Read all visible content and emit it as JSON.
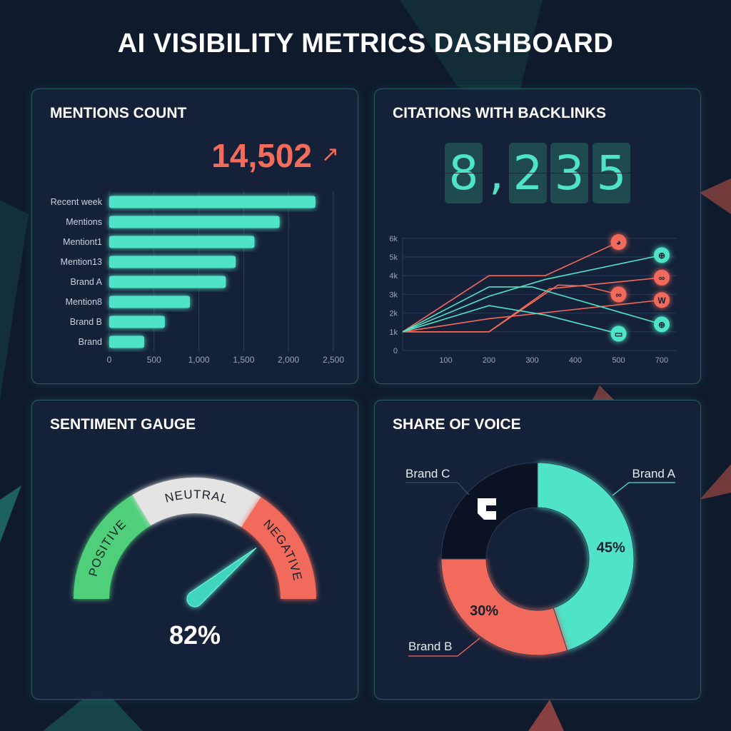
{
  "page": {
    "title": "AI VISIBILITY METRICS DASHBOARD"
  },
  "colors": {
    "teal": "#4fe3c8",
    "coral": "#f26b5b",
    "green": "#4fcf7a",
    "neutral": "#e4e4e4",
    "navy": "#0b1224"
  },
  "mentions": {
    "title": "MENTIONS COUNT",
    "total": "14,502",
    "trend_icon": "arrow-up-right-icon",
    "trend_glyph": "↗",
    "chart_data": {
      "type": "bar",
      "orientation": "horizontal",
      "categories": [
        "Recent week",
        "Mentions",
        "Mentiont1",
        "Mention13",
        "Brand A",
        "Mention8",
        "Brand B",
        "Brand"
      ],
      "values": [
        2300,
        1900,
        1620,
        1410,
        1300,
        900,
        620,
        390
      ],
      "xlim": [
        0,
        2500
      ],
      "xticks": [
        "0",
        "500",
        "1,000",
        "1,500",
        "2,000",
        "2,500"
      ],
      "grid": true
    }
  },
  "citations": {
    "title": "CITATIONS WITH BACKLINKS",
    "digits": [
      "8",
      "2",
      "3",
      "5"
    ],
    "comma": ",",
    "chart_data": {
      "type": "line",
      "xticks": [
        "100",
        "200",
        "300",
        "400",
        "500",
        "700"
      ],
      "yticks": [
        "0",
        "1k",
        "2k",
        "3k",
        "4k",
        "5k",
        "6k"
      ],
      "ylim": [
        0,
        6000
      ],
      "grid": true,
      "series": [
        {
          "color": "coral",
          "icon": "globe-icon",
          "points": [
            [
              0,
              1000
            ],
            [
              200,
              4000
            ],
            [
              330,
              4000
            ],
            [
              500,
              5800
            ]
          ]
        },
        {
          "color": "teal",
          "icon": "globe-grid-icon",
          "points": [
            [
              0,
              1000
            ],
            [
              200,
              2900
            ],
            [
              330,
              3800
            ],
            [
              700,
              5100
            ]
          ]
        },
        {
          "color": "coral",
          "icon": "chain-link-icon",
          "points": [
            [
              0,
              1000
            ],
            [
              200,
              1000
            ],
            [
              340,
              3300
            ],
            [
              700,
              3900
            ]
          ]
        },
        {
          "color": "coral",
          "icon": "link-icon",
          "points": [
            [
              0,
              1000
            ],
            [
              200,
              1000
            ],
            [
              360,
              3500
            ],
            [
              420,
              3450
            ],
            [
              500,
              3000
            ]
          ]
        },
        {
          "color": "coral",
          "icon": "wordpress-icon",
          "points": [
            [
              0,
              1000
            ],
            [
              200,
              1700
            ],
            [
              700,
              2700
            ]
          ]
        },
        {
          "color": "teal",
          "icon": "globe-grid-icon",
          "points": [
            [
              0,
              1000
            ],
            [
              200,
              3400
            ],
            [
              300,
              3400
            ],
            [
              700,
              1400
            ]
          ]
        },
        {
          "color": "teal",
          "icon": "browser-window-icon",
          "points": [
            [
              0,
              1000
            ],
            [
              200,
              2400
            ],
            [
              330,
              1900
            ],
            [
              500,
              900
            ]
          ]
        }
      ]
    }
  },
  "sentiment": {
    "title": "SENTIMENT GAUGE",
    "segments": [
      "POSITIVE",
      "NEUTRAL",
      "NEGATIVE"
    ],
    "value": 82,
    "value_label": "82%"
  },
  "share": {
    "title": "SHARE OF VOICE",
    "chart_data": {
      "type": "pie",
      "donut": true,
      "slices": [
        {
          "label": "Brand A",
          "value": 45,
          "value_label": "45%",
          "color": "teal"
        },
        {
          "label": "Brand B",
          "value": 30,
          "value_label": "30%",
          "color": "coral"
        },
        {
          "label": "Brand C",
          "value": 25,
          "value_label": "",
          "color": "navy",
          "icon": "brand-c-logo-icon"
        }
      ]
    }
  }
}
